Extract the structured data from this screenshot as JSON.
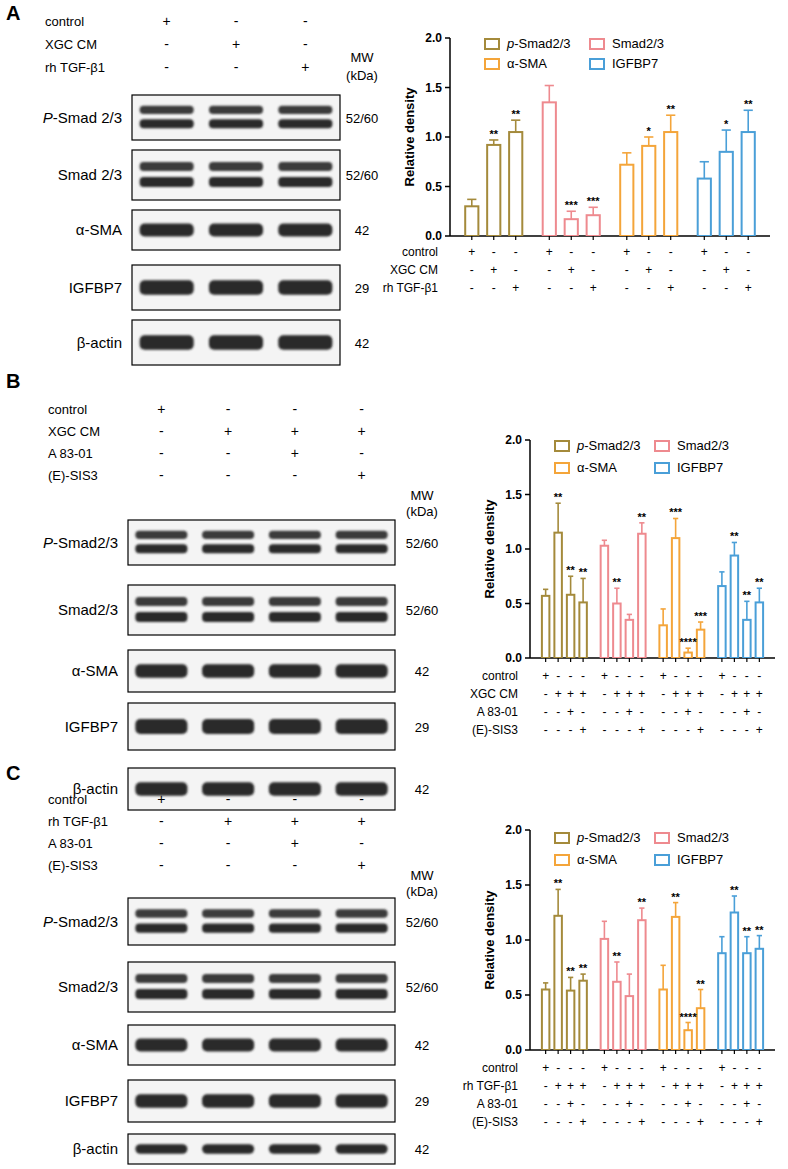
{
  "blots": [
    {
      "panel": "A",
      "mw_header": [
        "MW",
        "(kDa)"
      ],
      "conditions": [
        {
          "name": "control",
          "marks": [
            "+",
            "-",
            "-"
          ]
        },
        {
          "name": "XGC CM",
          "marks": [
            "-",
            "+",
            "-"
          ]
        },
        {
          "name": "rh TGF-β1",
          "marks": [
            "-",
            "-",
            "+"
          ]
        }
      ],
      "bands": [
        {
          "name": "P-Smad 2/3",
          "mw": "52/60"
        },
        {
          "name": "Smad 2/3",
          "mw": "52/60"
        },
        {
          "name": "α-SMA",
          "mw": "42"
        },
        {
          "name": "IGFBP7",
          "mw": "29"
        },
        {
          "name": "β-actin",
          "mw": "42"
        }
      ]
    },
    {
      "panel": "B",
      "mw_header": [
        "MW",
        "(kDa)"
      ],
      "conditions": [
        {
          "name": "control",
          "marks": [
            "+",
            "-",
            "-",
            "-"
          ]
        },
        {
          "name": "XGC CM",
          "marks": [
            "-",
            "+",
            "+",
            "+"
          ]
        },
        {
          "name": "A 83-01",
          "marks": [
            "-",
            "-",
            "+",
            "-"
          ]
        },
        {
          "name": "(E)-SIS3",
          "marks": [
            "-",
            "-",
            "-",
            "+"
          ]
        }
      ],
      "bands": [
        {
          "name": "P-Smad2/3",
          "mw": "52/60"
        },
        {
          "name": "Smad2/3",
          "mw": "52/60"
        },
        {
          "name": "α-SMA",
          "mw": "42"
        },
        {
          "name": "IGFBP7",
          "mw": "29"
        },
        {
          "name": "β-actin",
          "mw": "42"
        }
      ]
    },
    {
      "panel": "C",
      "mw_header": [
        "MW",
        "(kDa)"
      ],
      "conditions": [
        {
          "name": "control",
          "marks": [
            "+",
            "-",
            "-",
            "-"
          ]
        },
        {
          "name": "rh TGF-β1",
          "marks": [
            "-",
            "+",
            "+",
            "+"
          ]
        },
        {
          "name": "A 83-01",
          "marks": [
            "-",
            "-",
            "+",
            "-"
          ]
        },
        {
          "name": "(E)-SIS3",
          "marks": [
            "-",
            "-",
            "-",
            "+"
          ]
        }
      ],
      "bands": [
        {
          "name": "P-Smad2/3",
          "mw": "52/60"
        },
        {
          "name": "Smad2/3",
          "mw": "52/60"
        },
        {
          "name": "α-SMA",
          "mw": "42"
        },
        {
          "name": "IGFBP7",
          "mw": "29"
        },
        {
          "name": "β-actin",
          "mw": "42"
        }
      ]
    }
  ],
  "chart_data": [
    {
      "type": "bar",
      "ylabel": "Relative density",
      "ylim": [
        0,
        2
      ],
      "yticks": [
        {
          "value": 0,
          "label": "0.0"
        },
        {
          "value": 0.5,
          "label": "0.5"
        },
        {
          "value": 1,
          "label": "1.0"
        },
        {
          "value": 1.5,
          "label": "1.5"
        },
        {
          "value": 2,
          "label": "2.0"
        }
      ],
      "legend": "top",
      "series": [
        {
          "name": "p-Smad2/3",
          "color": "#a48a3b",
          "values": [
            0.3,
            0.92,
            1.05
          ],
          "errors": [
            0.07,
            0.05,
            0.12
          ],
          "significance": [
            null,
            "**",
            "**"
          ]
        },
        {
          "name": "Smad2/3",
          "color": "#ee8a8f",
          "values": [
            1.35,
            0.17,
            0.21
          ],
          "errors": [
            0.17,
            0.08,
            0.08
          ],
          "significance": [
            null,
            "***",
            "***"
          ]
        },
        {
          "name": "α-SMA",
          "color": "#f4a53a",
          "values": [
            0.72,
            0.91,
            1.05
          ],
          "errors": [
            0.12,
            0.09,
            0.17
          ],
          "significance": [
            null,
            "*",
            "**"
          ]
        },
        {
          "name": "IGFBP7",
          "color": "#4a9fd8",
          "values": [
            0.58,
            0.85,
            1.05
          ],
          "errors": [
            0.17,
            0.22,
            0.22
          ],
          "significance": [
            null,
            "*",
            "**"
          ]
        }
      ],
      "x_table": [
        {
          "name": "control",
          "marks": [
            "+",
            "-",
            "-"
          ]
        },
        {
          "name": "XGC CM",
          "marks": [
            "-",
            "+",
            "-"
          ]
        },
        {
          "name": "rh TGF-β1",
          "marks": [
            "-",
            "-",
            "+"
          ]
        }
      ]
    },
    {
      "type": "bar",
      "ylabel": "Relative density",
      "ylim": [
        0,
        2
      ],
      "yticks": [
        {
          "value": 0,
          "label": "0.0"
        },
        {
          "value": 0.5,
          "label": "0.5"
        },
        {
          "value": 1,
          "label": "1.0"
        },
        {
          "value": 1.5,
          "label": "1.5"
        },
        {
          "value": 2,
          "label": "2.0"
        }
      ],
      "legend": "top",
      "series": [
        {
          "name": "p-Smad2/3",
          "color": "#a48a3b",
          "values": [
            0.57,
            1.15,
            0.58,
            0.51
          ],
          "errors": [
            0.06,
            0.27,
            0.17,
            0.22
          ],
          "significance": [
            null,
            "**",
            "**",
            "**"
          ]
        },
        {
          "name": "Smad2/3",
          "color": "#ee8a8f",
          "values": [
            1.03,
            0.5,
            0.35,
            1.14
          ],
          "errors": [
            0.05,
            0.14,
            0.05,
            0.1
          ],
          "significance": [
            null,
            "**",
            null,
            "**"
          ]
        },
        {
          "name": "α-SMA",
          "color": "#f4a53a",
          "values": [
            0.3,
            1.1,
            0.05,
            0.26
          ],
          "errors": [
            0.15,
            0.18,
            0.04,
            0.07
          ],
          "significance": [
            null,
            "***",
            "****",
            "***"
          ]
        },
        {
          "name": "IGFBP7",
          "color": "#4a9fd8",
          "values": [
            0.66,
            0.94,
            0.35,
            0.51
          ],
          "errors": [
            0.13,
            0.12,
            0.17,
            0.13
          ],
          "significance": [
            null,
            "**",
            "**",
            "**"
          ]
        }
      ],
      "x_table": [
        {
          "name": "control",
          "marks": [
            "+",
            "-",
            "-",
            "-"
          ]
        },
        {
          "name": "XGC CM",
          "marks": [
            "-",
            "+",
            "+",
            "+"
          ]
        },
        {
          "name": "A 83-01",
          "marks": [
            "-",
            "-",
            "+",
            "-"
          ]
        },
        {
          "name": "(E)-SIS3",
          "marks": [
            "-",
            "-",
            "-",
            "+"
          ]
        }
      ]
    },
    {
      "type": "bar",
      "ylabel": "Relative density",
      "ylim": [
        0,
        2
      ],
      "yticks": [
        {
          "value": 0,
          "label": "0.0"
        },
        {
          "value": 0.5,
          "label": "0.5"
        },
        {
          "value": 1,
          "label": "1.0"
        },
        {
          "value": 1.5,
          "label": "1.5"
        },
        {
          "value": 2,
          "label": "2.0"
        }
      ],
      "legend": "top",
      "series": [
        {
          "name": "p-Smad2/3",
          "color": "#a48a3b",
          "values": [
            0.55,
            1.22,
            0.54,
            0.63
          ],
          "errors": [
            0.06,
            0.24,
            0.12,
            0.06
          ],
          "significance": [
            null,
            "**",
            "**",
            "**"
          ]
        },
        {
          "name": "Smad2/3",
          "color": "#ee8a8f",
          "values": [
            1.01,
            0.62,
            0.49,
            1.18
          ],
          "errors": [
            0.16,
            0.18,
            0.2,
            0.11
          ],
          "significance": [
            null,
            "**",
            null,
            "**"
          ]
        },
        {
          "name": "α-SMA",
          "color": "#f4a53a",
          "values": [
            0.55,
            1.21,
            0.18,
            0.38
          ],
          "errors": [
            0.22,
            0.13,
            0.07,
            0.17
          ],
          "significance": [
            null,
            "**",
            "****",
            "**"
          ]
        },
        {
          "name": "IGFBP7",
          "color": "#4a9fd8",
          "values": [
            0.88,
            1.25,
            0.88,
            0.92
          ],
          "errors": [
            0.15,
            0.15,
            0.15,
            0.12
          ],
          "significance": [
            null,
            "**",
            "**",
            "**"
          ]
        }
      ],
      "x_table": [
        {
          "name": "control",
          "marks": [
            "+",
            "-",
            "-",
            "-"
          ]
        },
        {
          "name": "rh TGF-β1",
          "marks": [
            "-",
            "+",
            "+",
            "+"
          ]
        },
        {
          "name": "A 83-01",
          "marks": [
            "-",
            "-",
            "+",
            "-"
          ]
        },
        {
          "name": "(E)-SIS3",
          "marks": [
            "-",
            "-",
            "-",
            "+"
          ]
        }
      ]
    }
  ]
}
